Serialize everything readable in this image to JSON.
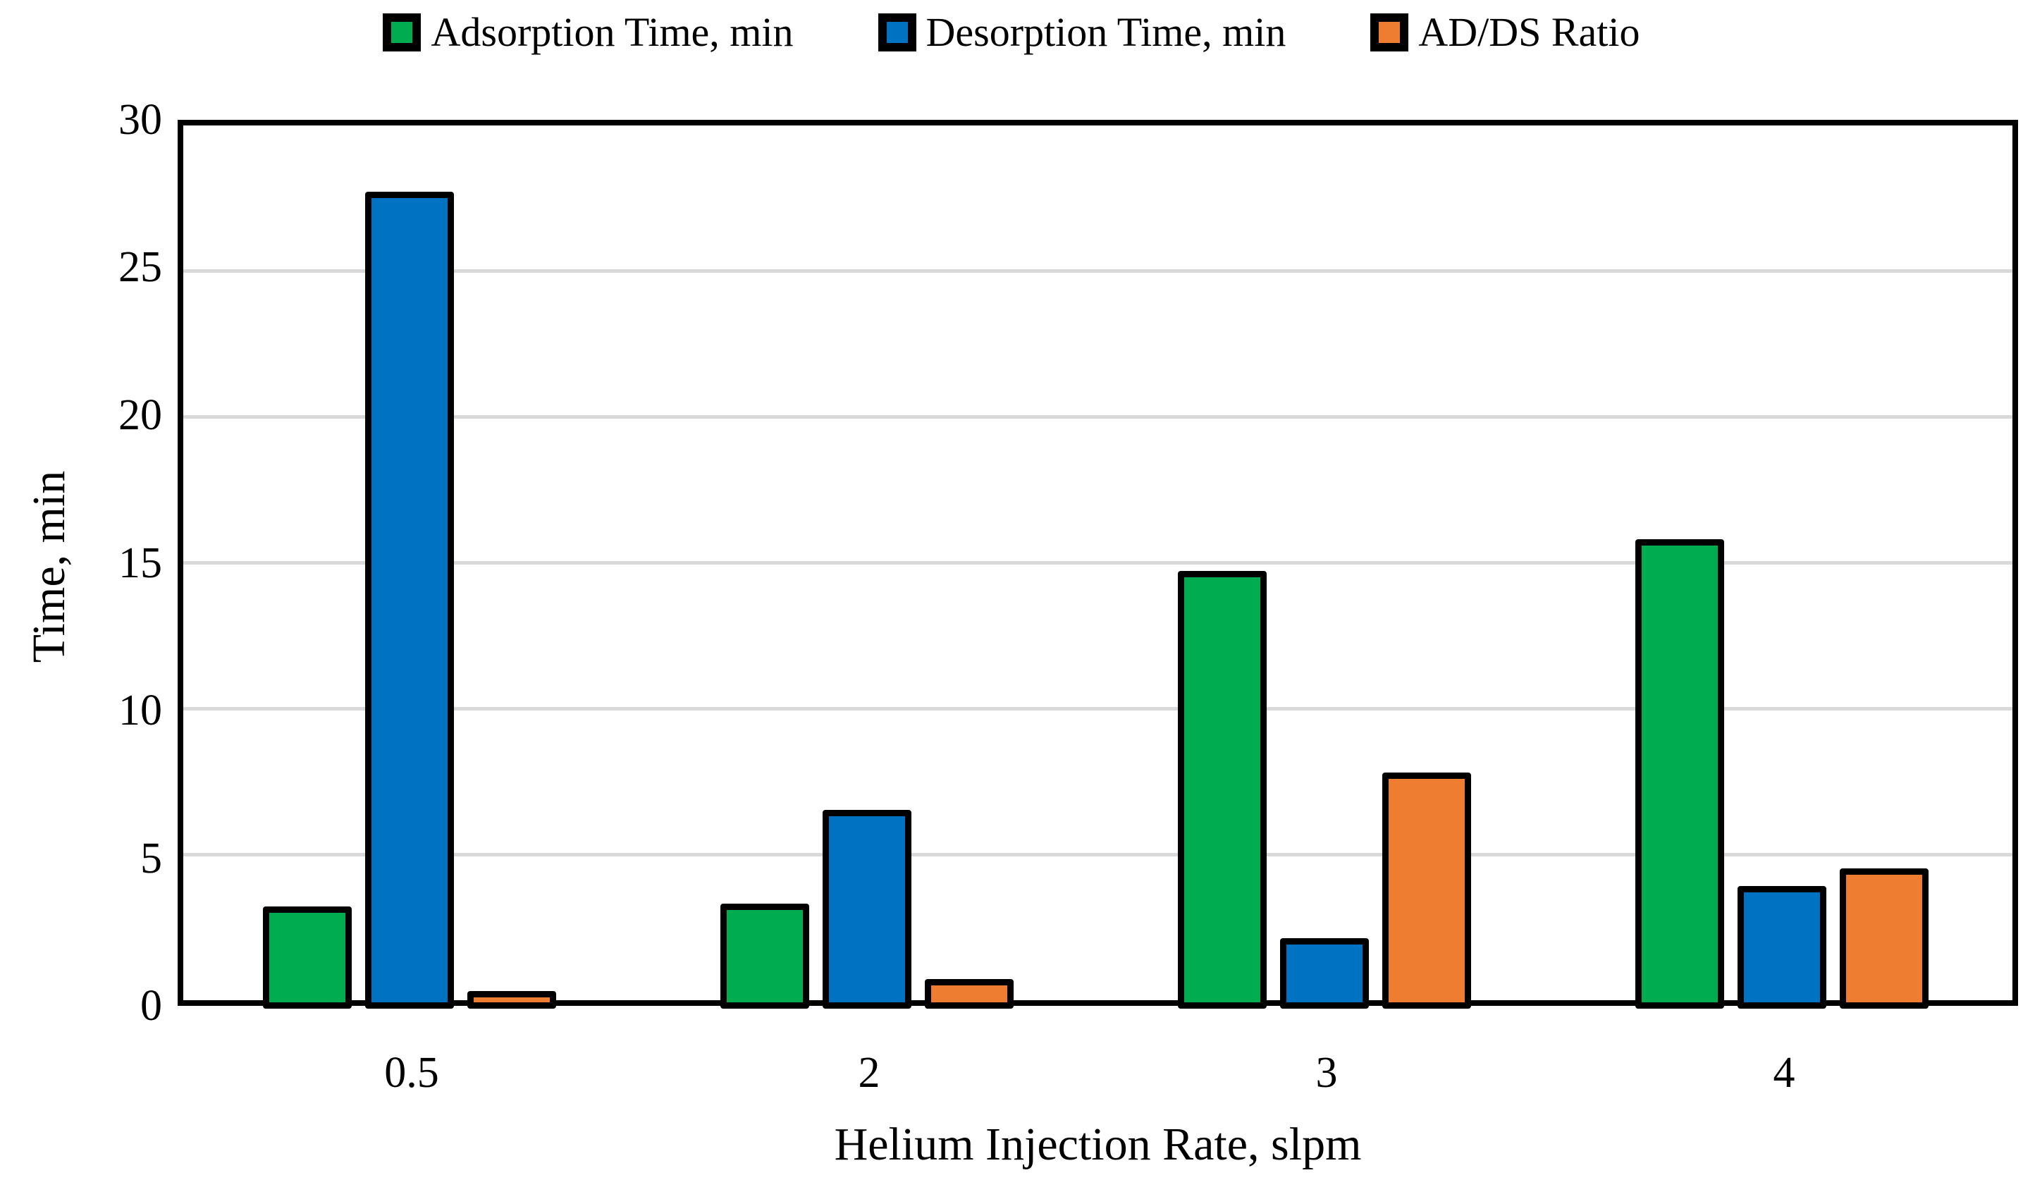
{
  "legend": {
    "items": [
      {
        "label": "Adsorption Time, min",
        "color": "#00AC50"
      },
      {
        "label": "Desorption Time, min",
        "color": "#0072C2"
      },
      {
        "label": "AD/DS Ratio",
        "color": "#EE7D31"
      }
    ]
  },
  "y_axis": {
    "title": "Time, min",
    "ticks": [
      0,
      5,
      10,
      15,
      20,
      25,
      30
    ]
  },
  "x_axis": {
    "title": "Helium Injection Rate, slpm",
    "categories": [
      "0.5",
      "2",
      "3",
      "4"
    ]
  },
  "chart_data": {
    "type": "bar",
    "title": "",
    "xlabel": "Helium Injection Rate, slpm",
    "ylabel": "Time, min",
    "categories": [
      "0.5",
      "2",
      "3",
      "4"
    ],
    "series": [
      {
        "name": "Adsorption Time, min",
        "color": "#00AC50",
        "values": [
          3.0,
          3.1,
          14.5,
          15.6
        ]
      },
      {
        "name": "Desorption Time, min",
        "color": "#0072C2",
        "values": [
          27.5,
          6.3,
          1.9,
          3.7
        ]
      },
      {
        "name": "AD/DS Ratio",
        "color": "#EE7D31",
        "values": [
          0.1,
          0.5,
          7.6,
          4.3
        ]
      }
    ],
    "ylim": [
      0,
      30
    ],
    "ytick_step": 5,
    "grid": true,
    "gridline_color": "#d9d9d9",
    "bar_border_color": "#000000",
    "legend_position": "top"
  }
}
